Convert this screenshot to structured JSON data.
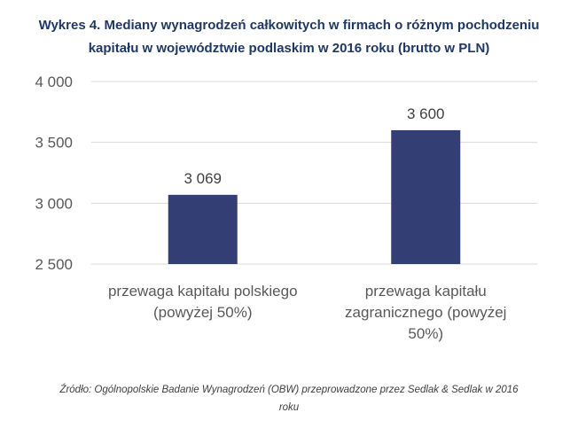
{
  "chart_data": {
    "type": "bar",
    "title_lines": [
      "Wykres 4. Mediany wynagrodzeń całkowitych w firmach o różnym pochodzeniu",
      "kapitału w województwie podlaskim w 2016 roku (brutto w PLN)"
    ],
    "categories": [
      [
        "przewaga kapitału polskiego",
        "(powyżej 50%)"
      ],
      [
        "przewaga kapitału",
        "zagranicznego (powyżej",
        "50%)"
      ]
    ],
    "values": [
      3069,
      3600
    ],
    "value_labels": [
      "3 069",
      "3 600"
    ],
    "ylim": [
      2500,
      4000
    ],
    "yticks": [
      2500,
      3000,
      3500,
      4000
    ],
    "ytick_labels": [
      "2 500",
      "3 000",
      "3 500",
      "4 000"
    ],
    "grid": true,
    "bar_color": "#333f74",
    "grid_color": "#d9d9d9"
  },
  "source": {
    "lines": [
      "Źródło: Ogólnopolskie Badanie Wynagrodzeń (OBW) przeprowadzone przez Sedlak & Sedlak w 2016",
      "roku"
    ]
  }
}
